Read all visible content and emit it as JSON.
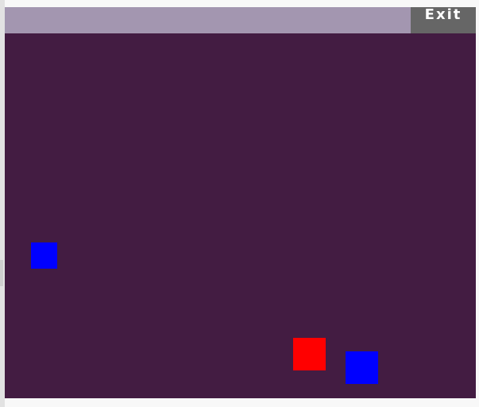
{
  "header": {
    "exit_label": "Exit"
  },
  "colors": {
    "header": "#a396b0",
    "board": "#431c42",
    "exit_button": "#666666",
    "player": "#ff0000",
    "enemy": "#0000ff"
  },
  "pieces": [
    {
      "type": "enemy",
      "color": "#0000ff"
    },
    {
      "type": "player",
      "color": "#ff0000"
    },
    {
      "type": "enemy",
      "color": "#0000ff"
    }
  ]
}
